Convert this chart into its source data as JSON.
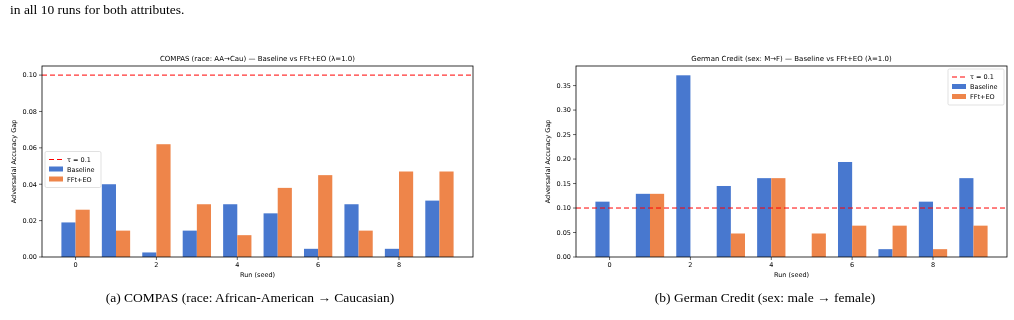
{
  "chart_data": [
    {
      "type": "bar",
      "title": "COMPAS (race: AA→Cau) — Baseline vs FFt+EO  (λ=1.0)",
      "xlabel": "Run (seed)",
      "ylabel": "Adversarial Accuracy Gap",
      "categories": [
        "0",
        null,
        "2",
        null,
        "4",
        null,
        "6",
        null,
        "8",
        null
      ],
      "series": [
        {
          "name": "Baseline",
          "color": "#4878cf",
          "values": [
            0.019,
            0.04,
            0.0025,
            0.0145,
            0.029,
            0.024,
            0.0045,
            0.029,
            0.0045,
            0.031
          ]
        },
        {
          "name": "FFt+EO",
          "color": "#ee854a",
          "values": [
            0.026,
            0.0145,
            0.062,
            0.029,
            0.012,
            0.038,
            0.045,
            0.0145,
            0.047,
            0.047
          ]
        }
      ],
      "ylim": [
        0,
        0.105
      ],
      "yticks": [
        {
          "value": 0,
          "label": "0.00"
        },
        {
          "value": 0.02,
          "label": "0.02"
        },
        {
          "value": 0.04,
          "label": "0.04"
        },
        {
          "value": 0.06,
          "label": "0.06"
        },
        {
          "value": 0.08,
          "label": "0.08"
        },
        {
          "value": 0.1,
          "label": "0.10"
        }
      ],
      "ref_lines": [
        {
          "axis": "y",
          "value": 0.1,
          "label": "τ = 0.1",
          "color": "#ff0000",
          "line_style": "dashed"
        }
      ],
      "legend": "left",
      "grid": false,
      "annotations": [
        "in all 10 runs for both attributes.",
        "(a) COMPAS (race: African-American → Caucasian)"
      ]
    },
    {
      "type": "bar",
      "title": "German Credit (sex: M→F) — Baseline vs FFt+EO  (λ=1.0)",
      "xlabel": "Run (seed)",
      "ylabel": "Adversarial Accuracy Gap",
      "categories": [
        "0",
        null,
        "2",
        null,
        "4",
        null,
        "6",
        null,
        "8",
        null
      ],
      "series": [
        {
          "name": "Baseline",
          "color": "#4878cf",
          "values": [
            0.113,
            0.129,
            0.371,
            0.145,
            0.161,
            0,
            0.194,
            0.016,
            0.113,
            0.161
          ]
        },
        {
          "name": "FFt+EO",
          "color": "#ee854a",
          "values": [
            0,
            0.129,
            0,
            0.048,
            0.161,
            0.048,
            0.064,
            0.064,
            0.016,
            0.064
          ]
        }
      ],
      "ylim": [
        0,
        0.39
      ],
      "yticks": [
        {
          "value": 0,
          "label": "0.00"
        },
        {
          "value": 0.05,
          "label": "0.05"
        },
        {
          "value": 0.1,
          "label": "0.10"
        },
        {
          "value": 0.15,
          "label": "0.15"
        },
        {
          "value": 0.2,
          "label": "0.20"
        },
        {
          "value": 0.25,
          "label": "0.25"
        },
        {
          "value": 0.3,
          "label": "0.30"
        },
        {
          "value": 0.35,
          "label": "0.35"
        }
      ],
      "ref_lines": [
        {
          "axis": "y",
          "value": 0.1,
          "label": "τ = 0.1",
          "color": "#ff0000",
          "line_style": "dashed"
        }
      ],
      "legend": "top right",
      "grid": false,
      "annotations": [
        "(b) German Credit (sex: male → female)"
      ]
    }
  ]
}
